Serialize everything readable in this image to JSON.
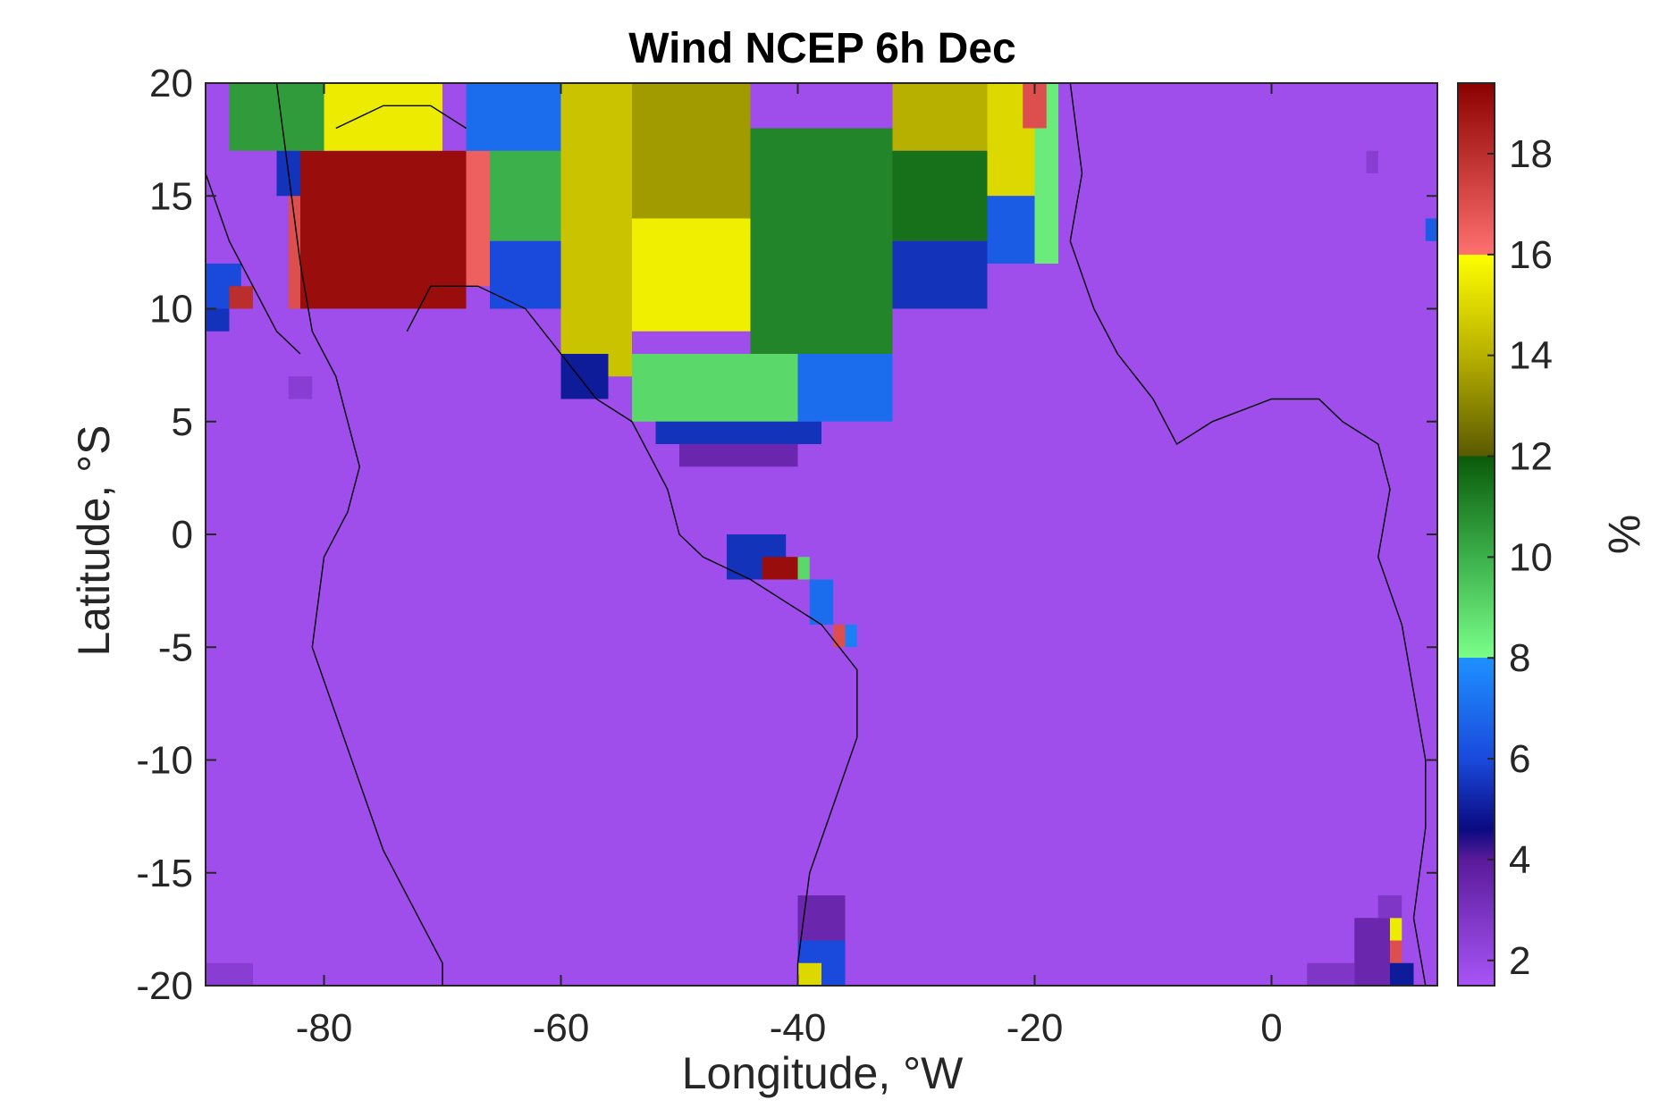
{
  "chart_data": {
    "type": "heatmap",
    "title": "Wind NCEP 6h Dec",
    "xlabel": "Longitude, °W",
    "ylabel": "Latitude, °S",
    "colorbar_label": "%",
    "xlim": [
      -90,
      14
    ],
    "ylim": [
      -20,
      20
    ],
    "x_ticks": [
      -80,
      -60,
      -40,
      -20,
      0
    ],
    "x_tick_labels": [
      "-80",
      "-60",
      "-40",
      "-20",
      "0"
    ],
    "y_ticks": [
      20,
      15,
      10,
      5,
      0,
      -5,
      -10,
      -15,
      -20
    ],
    "y_tick_labels": [
      "20",
      "15",
      "10",
      "5",
      "0",
      "-5",
      "-10",
      "-15",
      "-20"
    ],
    "colorbar_range": [
      1.5,
      19.4
    ],
    "colorbar_ticks": [
      18,
      16,
      14,
      12,
      10,
      8,
      6,
      4,
      2
    ],
    "colorbar_tick_labels": [
      "18",
      "16",
      "14",
      "12",
      "10",
      "8",
      "6",
      "4",
      "2"
    ],
    "background_value": 1.8,
    "grid": false,
    "colorbar_stops": [
      {
        "value": 1.5,
        "color": "#a855f7"
      },
      {
        "value": 4.0,
        "color": "#5a1a9a"
      },
      {
        "value": 4.6,
        "color": "#0a0a80"
      },
      {
        "value": 6.0,
        "color": "#1a4adc"
      },
      {
        "value": 8.0,
        "color": "#1e90ff"
      },
      {
        "value": 8.0,
        "color": "#7aff8a"
      },
      {
        "value": 10.0,
        "color": "#3cb04a"
      },
      {
        "value": 12.0,
        "color": "#0a5a0a"
      },
      {
        "value": 12.0,
        "color": "#5a5a00"
      },
      {
        "value": 14.0,
        "color": "#b8b000"
      },
      {
        "value": 16.0,
        "color": "#ffff00"
      },
      {
        "value": 16.0,
        "color": "#ff7070"
      },
      {
        "value": 19.4,
        "color": "#8b0000"
      }
    ],
    "regions": [
      {
        "lon": [
          -82,
          -68
        ],
        "lat": [
          10,
          17
        ],
        "value": 19.0
      },
      {
        "lon": [
          -83,
          -82
        ],
        "lat": [
          10,
          17
        ],
        "value": 17.0
      },
      {
        "lon": [
          -68,
          -66
        ],
        "lat": [
          11,
          17
        ],
        "value": 16.5
      },
      {
        "lon": [
          -88,
          -80
        ],
        "lat": [
          17,
          20
        ],
        "value": 10.5
      },
      {
        "lon": [
          -84,
          -82
        ],
        "lat": [
          15,
          17
        ],
        "value": 5.5
      },
      {
        "lon": [
          -80,
          -70
        ],
        "lat": [
          17,
          20
        ],
        "value": 15.5
      },
      {
        "lon": [
          -68,
          -60
        ],
        "lat": [
          17,
          20
        ],
        "value": 7.0
      },
      {
        "lon": [
          -66,
          -60
        ],
        "lat": [
          13,
          17
        ],
        "value": 10.0
      },
      {
        "lon": [
          -66,
          -60
        ],
        "lat": [
          10,
          13
        ],
        "value": 6.0
      },
      {
        "lon": [
          -60,
          -54
        ],
        "lat": [
          7,
          20
        ],
        "value": 14.5
      },
      {
        "lon": [
          -54,
          -44
        ],
        "lat": [
          9,
          14
        ],
        "value": 15.6
      },
      {
        "lon": [
          -54,
          -44
        ],
        "lat": [
          14,
          20
        ],
        "value": 13.5
      },
      {
        "lon": [
          -44,
          -32
        ],
        "lat": [
          8,
          18
        ],
        "value": 11.0
      },
      {
        "lon": [
          -40,
          -32
        ],
        "lat": [
          5,
          8
        ],
        "value": 7.0
      },
      {
        "lon": [
          -54,
          -40
        ],
        "lat": [
          5,
          8
        ],
        "value": 9.0
      },
      {
        "lon": [
          -32,
          -24
        ],
        "lat": [
          17,
          20
        ],
        "value": 14.0
      },
      {
        "lon": [
          -32,
          -24
        ],
        "lat": [
          13,
          17
        ],
        "value": 11.5
      },
      {
        "lon": [
          -32,
          -24
        ],
        "lat": [
          10,
          13
        ],
        "value": 5.5
      },
      {
        "lon": [
          -24,
          -20
        ],
        "lat": [
          15,
          20
        ],
        "value": 15.0
      },
      {
        "lon": [
          -20,
          -18
        ],
        "lat": [
          12,
          20
        ],
        "value": 8.5
      },
      {
        "lon": [
          -21,
          -19
        ],
        "lat": [
          18,
          20
        ],
        "value": 17.0
      },
      {
        "lon": [
          -24,
          -20
        ],
        "lat": [
          12,
          15
        ],
        "value": 6.5
      },
      {
        "lon": [
          -60,
          -56
        ],
        "lat": [
          6,
          8
        ],
        "value": 5.0
      },
      {
        "lon": [
          -52,
          -38
        ],
        "lat": [
          4,
          5
        ],
        "value": 5.5
      },
      {
        "lon": [
          -50,
          -40
        ],
        "lat": [
          3,
          4
        ],
        "value": 3.5
      },
      {
        "lon": [
          -90,
          -87
        ],
        "lat": [
          10,
          12
        ],
        "value": 6.0
      },
      {
        "lon": [
          -88,
          -86
        ],
        "lat": [
          10,
          11
        ],
        "value": 18.0
      },
      {
        "lon": [
          -90,
          -88
        ],
        "lat": [
          9,
          10
        ],
        "value": 5.5
      },
      {
        "lon": [
          -46,
          -41
        ],
        "lat": [
          -2,
          0
        ],
        "value": 5.5
      },
      {
        "lon": [
          -43,
          -40
        ],
        "lat": [
          -2,
          -1
        ],
        "value": 19.0
      },
      {
        "lon": [
          -40,
          -39
        ],
        "lat": [
          -2,
          -1
        ],
        "value": 9.0
      },
      {
        "lon": [
          -39,
          -37
        ],
        "lat": [
          -4,
          -2
        ],
        "value": 7.0
      },
      {
        "lon": [
          -37,
          -36
        ],
        "lat": [
          -5,
          -4
        ],
        "value": 17.0
      },
      {
        "lon": [
          -36,
          -35
        ],
        "lat": [
          -5,
          -4
        ],
        "value": 7.5
      },
      {
        "lon": [
          -40,
          -36
        ],
        "lat": [
          -20,
          -18
        ],
        "value": 6.0
      },
      {
        "lon": [
          -40,
          -38
        ],
        "lat": [
          -20,
          -19
        ],
        "value": 15.0
      },
      {
        "lon": [
          -40,
          -36
        ],
        "lat": [
          -18,
          -16
        ],
        "value": 3.5
      },
      {
        "lon": [
          10,
          11
        ],
        "lat": [
          -18,
          -17
        ],
        "value": 15.5
      },
      {
        "lon": [
          10,
          11
        ],
        "lat": [
          -19,
          -18
        ],
        "value": 17.0
      },
      {
        "lon": [
          9,
          12
        ],
        "lat": [
          -20,
          -19
        ],
        "value": 5.0
      },
      {
        "lon": [
          7,
          10
        ],
        "lat": [
          -20,
          -17
        ],
        "value": 3.5
      },
      {
        "lon": [
          3,
          7
        ],
        "lat": [
          -20,
          -19
        ],
        "value": 2.8
      },
      {
        "lon": [
          9,
          11
        ],
        "lat": [
          -17,
          -16
        ],
        "value": 2.8
      },
      {
        "lon": [
          -90,
          -86
        ],
        "lat": [
          -20,
          -19
        ],
        "value": 2.5
      },
      {
        "lon": [
          -83,
          -81
        ],
        "lat": [
          6,
          7
        ],
        "value": 2.5
      },
      {
        "lon": [
          8,
          9
        ],
        "lat": [
          16,
          17
        ],
        "value": 2.5
      },
      {
        "lon": [
          13,
          14
        ],
        "lat": [
          13,
          14
        ],
        "value": 6.5
      }
    ]
  }
}
